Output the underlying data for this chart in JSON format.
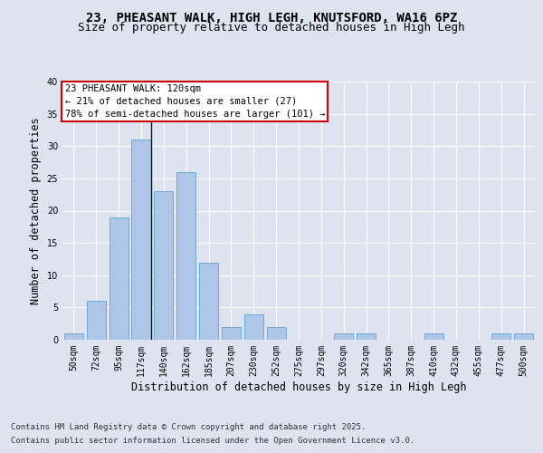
{
  "title_line1": "23, PHEASANT WALK, HIGH LEGH, KNUTSFORD, WA16 6PZ",
  "title_line2": "Size of property relative to detached houses in High Legh",
  "xlabel": "Distribution of detached houses by size in High Legh",
  "ylabel": "Number of detached properties",
  "categories": [
    "50sqm",
    "72sqm",
    "95sqm",
    "117sqm",
    "140sqm",
    "162sqm",
    "185sqm",
    "207sqm",
    "230sqm",
    "252sqm",
    "275sqm",
    "297sqm",
    "320sqm",
    "342sqm",
    "365sqm",
    "387sqm",
    "410sqm",
    "432sqm",
    "455sqm",
    "477sqm",
    "500sqm"
  ],
  "values": [
    1,
    6,
    19,
    31,
    23,
    26,
    12,
    2,
    4,
    2,
    0,
    0,
    1,
    1,
    0,
    0,
    1,
    0,
    0,
    1,
    1
  ],
  "bar_color": "#aec6e8",
  "bar_edge_color": "#6aaad4",
  "vline_color": "#111111",
  "annotation_text": "23 PHEASANT WALK: 120sqm\n← 21% of detached houses are smaller (27)\n78% of semi-detached houses are larger (101) →",
  "annotation_box_color": "#ffffff",
  "annotation_box_edgecolor": "#cc0000",
  "ylim": [
    0,
    40
  ],
  "yticks": [
    0,
    5,
    10,
    15,
    20,
    25,
    30,
    35,
    40
  ],
  "bg_color": "#dde4f0",
  "plot_bg_color": "#dde4f0",
  "grid_color": "#ffffff",
  "footer_line1": "Contains HM Land Registry data © Crown copyright and database right 2025.",
  "footer_line2": "Contains public sector information licensed under the Open Government Licence v3.0.",
  "title_fontsize": 10,
  "subtitle_fontsize": 9,
  "axis_label_fontsize": 8.5,
  "tick_fontsize": 7,
  "annotation_fontsize": 7.5,
  "footer_fontsize": 6.5
}
